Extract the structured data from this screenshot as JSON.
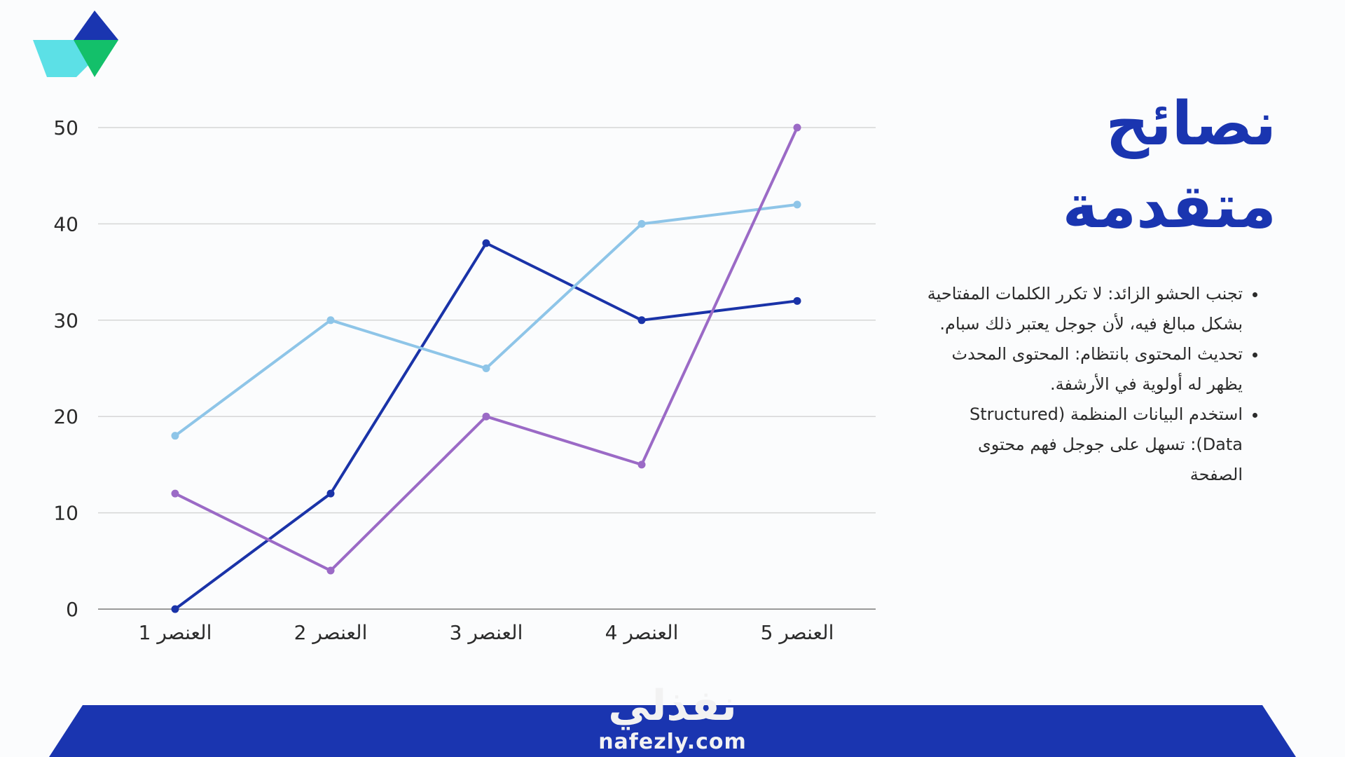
{
  "slide": {
    "title_line1": "نصائح",
    "title_line2": "متقدمة",
    "tips": [
      "تجنب الحشو الزائد: لا تكرر الكلمات المفتاحية بشكل مبالغ فيه، لأن جوجل يعتبر ذلك سبام.",
      "تحديث المحتوى بانتظام: المحتوى المحدث يظهر له أولوية في الأرشفة.",
      "استخدم البيانات المنظمة (Structured Data): تسهل على جوجل فهم محتوى الصفحة"
    ],
    "brand_arabic": "نفذلي",
    "brand_domain": "nafezly.com",
    "colors": {
      "accent": "#1a35b0",
      "logo_light": "#5ce0e6",
      "logo_green": "#13c06a",
      "logo_blue": "#1a35b0"
    }
  },
  "chart_data": {
    "type": "line",
    "categories": [
      "العنصر 1",
      "العنصر 2",
      "العنصر 3",
      "العنصر 4",
      "العنصر 5"
    ],
    "series": [
      {
        "values": [
          0,
          12,
          38,
          30,
          32
        ],
        "color": "#1a33a8"
      },
      {
        "values": [
          18,
          30,
          25,
          40,
          42
        ],
        "color": "#8ec5e8"
      },
      {
        "values": [
          12,
          4,
          20,
          15,
          50
        ],
        "color": "#9b6ac6"
      }
    ],
    "yticks": [
      0,
      10,
      20,
      30,
      40,
      50
    ],
    "ylim": [
      0,
      50
    ],
    "grid": true,
    "legend": "none"
  }
}
